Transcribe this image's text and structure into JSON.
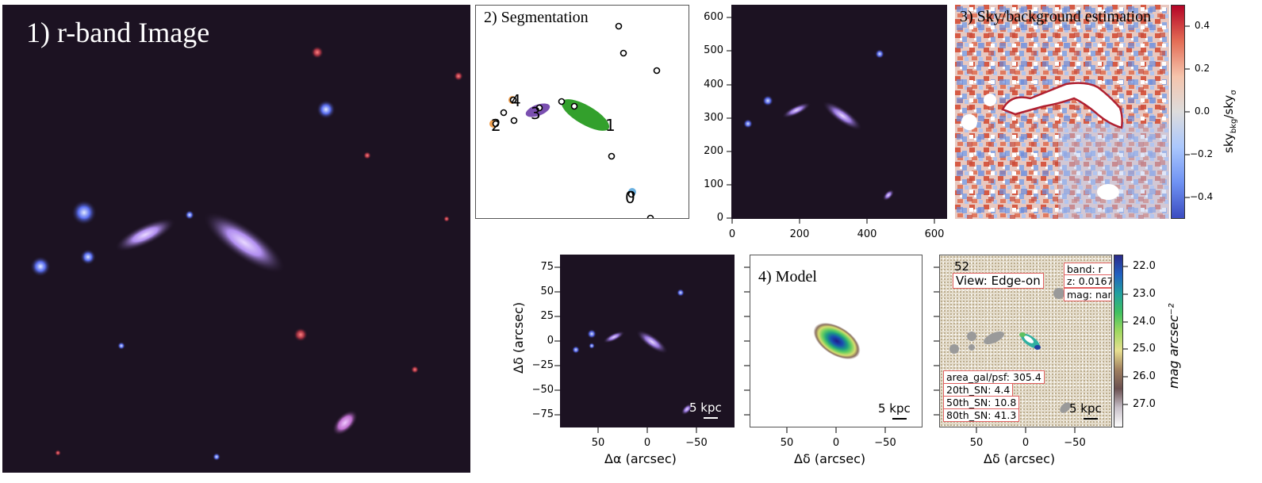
{
  "panel1": {
    "title": "1) r-band Image"
  },
  "panel2": {
    "title": "2) Segmentation",
    "labels": [
      "0",
      "1",
      "2",
      "3",
      "4"
    ]
  },
  "panel3": {
    "xticks": [
      "0",
      "200",
      "400",
      "600"
    ],
    "yticks": [
      "600",
      "500",
      "400",
      "300",
      "200",
      "100",
      "0"
    ]
  },
  "panel4": {
    "title": "3) Sky/background estimation",
    "colorbar_ticks": [
      "0.4",
      "0.2",
      "0.0",
      "−0.2",
      "−0.4"
    ],
    "colorbar_label": "sky_bkg/sky_σ",
    "colorbar_label_main": "sky",
    "colorbar_label_sub1": "bkg",
    "colorbar_label_mid": "/sky",
    "colorbar_label_sub2": "σ"
  },
  "panel5": {
    "yticks": [
      "75",
      "50",
      "25",
      "0",
      "−25",
      "−50",
      "−75"
    ],
    "xticks": [
      "50",
      "0",
      "−50"
    ],
    "xlabel": "Δα (arcsec)",
    "ylabel": "Δδ (arcsec)",
    "scalebar": "5 kpc"
  },
  "panel6": {
    "title": "4) Model",
    "xticks": [
      "50",
      "0",
      "−50"
    ],
    "xlabel": "Δδ (arcsec)",
    "scalebar": "5 kpc"
  },
  "panel7": {
    "id": "52",
    "view": "View: Edge-on",
    "band": "band: r",
    "z": "z: 0.0167",
    "mag": "mag: nan",
    "stats": [
      "area_gal/psf: 305.4",
      "20th_SN: 4.4",
      "50th_SN: 10.8",
      "80th_SN: 41.3"
    ],
    "xticks": [
      "50",
      "0",
      "−50"
    ],
    "xlabel": "Δδ (arcsec)",
    "scalebar": "5 kpc",
    "colorbar_ticks": [
      "22.0",
      "23.0",
      "24.0",
      "25.0",
      "26.0",
      "27.0"
    ],
    "colorbar_label": "mag arcsec⁻²"
  },
  "colors": {
    "sky_bg": "#1a1020",
    "galaxy": "#b48cf0",
    "seg_green": "#33a02c",
    "seg_purple": "#7a4fb0",
    "seg_orange": "#f0a050",
    "seg_blue": "#6ab0e0",
    "box_border": "#e06060"
  }
}
